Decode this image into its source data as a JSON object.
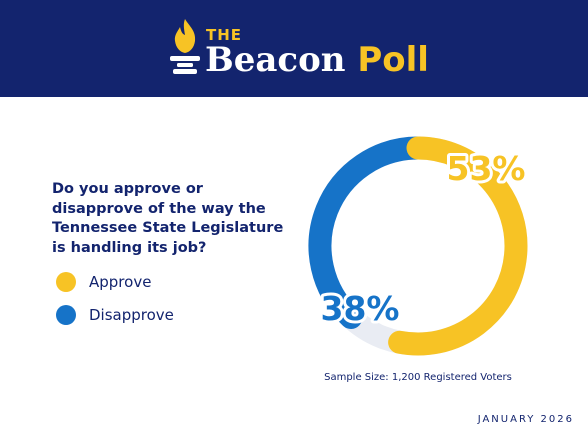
{
  "brand": {
    "prefix": "THE",
    "name": "Beacon ",
    "name_accent": "Poll",
    "logo_icon": "torch-icon"
  },
  "question": "Do you approve or disapprove of the way the Tennessee State Legislature is handling its job?",
  "legend": [
    {
      "label": "Approve",
      "color": "#f7c325"
    },
    {
      "label": "Disapprove",
      "color": "#1673c8"
    }
  ],
  "chart_data": {
    "type": "pie",
    "variant": "donut",
    "categories": [
      "Approve",
      "Disapprove"
    ],
    "values": [
      53,
      38
    ],
    "labels": [
      "53%",
      "38%"
    ],
    "colors": [
      "#f7c325",
      "#1673c8"
    ],
    "unit": "%"
  },
  "sample_size": "Sample Size: 1,200 Registered Voters",
  "date": "JANUARY 2026",
  "colors": {
    "navy": "#13246e",
    "gold": "#f7c325",
    "blue": "#1673c8",
    "track": "#e9ecf3"
  }
}
